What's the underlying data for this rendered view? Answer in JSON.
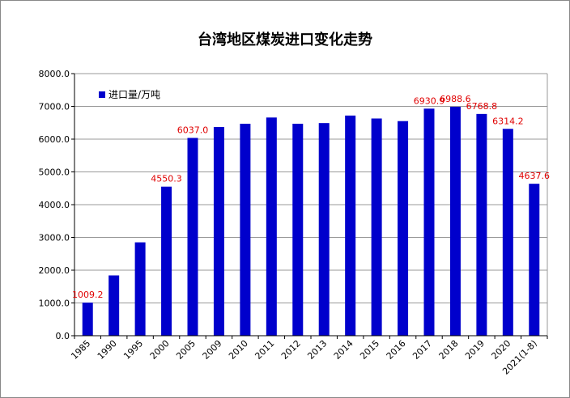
{
  "chart_data": {
    "type": "bar",
    "title": "台湾地区煤炭进口变化走势",
    "categories": [
      "1985",
      "1990",
      "1995",
      "2000",
      "2005",
      "2009",
      "2010",
      "2011",
      "2012",
      "2013",
      "2014",
      "2015",
      "2016",
      "2017",
      "2018",
      "2019",
      "2020",
      "2021(1-8)"
    ],
    "series": [
      {
        "name": "进口量/万吨",
        "values": [
          1009.2,
          1840,
          2850,
          4550.3,
          6037.0,
          6370,
          6470,
          6660,
          6470,
          6490,
          6720,
          6630,
          6550,
          6930.9,
          6988.6,
          6768.8,
          6314.2,
          4637.6
        ]
      }
    ],
    "data_labels": [
      {
        "index": 0,
        "text": "1009.2"
      },
      {
        "index": 3,
        "text": "4550.3"
      },
      {
        "index": 4,
        "text": "6037.0"
      },
      {
        "index": 13,
        "text": "6930.9"
      },
      {
        "index": 14,
        "text": "6988.6"
      },
      {
        "index": 15,
        "text": "6768.8"
      },
      {
        "index": 16,
        "text": "6314.2"
      },
      {
        "index": 17,
        "text": "4637.6"
      }
    ],
    "y_ticks": [
      "0.0",
      "1000.0",
      "2000.0",
      "3000.0",
      "4000.0",
      "5000.0",
      "6000.0",
      "7000.0",
      "8000.0"
    ],
    "ylim": [
      0,
      8000
    ],
    "grid": true,
    "legend_position": "top-left",
    "colors": {
      "bar": "#0000CC",
      "data_label": "#E00000",
      "grid": "#999999"
    }
  }
}
